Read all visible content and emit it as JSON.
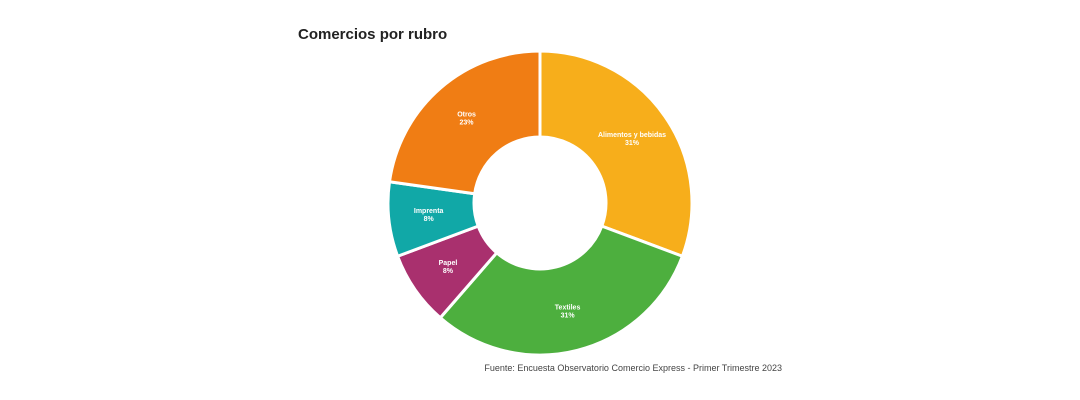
{
  "chart_data": {
    "type": "pie",
    "title": "Comercios por rubro",
    "source": "Fuente: Encuesta Observatorio Comercio Express - Primer Trimestre 2023",
    "slices": [
      {
        "label": "Alimentos y bebidas",
        "percent_label": "31%",
        "value": 31,
        "color": "#F7AE1B"
      },
      {
        "label": "Textiles",
        "percent_label": "31%",
        "value": 31,
        "color": "#4DAF3E"
      },
      {
        "label": "Papel",
        "percent_label": "8%",
        "value": 8,
        "color": "#A9306E"
      },
      {
        "label": "Imprenta",
        "percent_label": "8%",
        "value": 8,
        "color": "#11A8A7"
      },
      {
        "label": "Otros",
        "percent_label": "23%",
        "value": 23,
        "color": "#F07D14"
      }
    ]
  }
}
